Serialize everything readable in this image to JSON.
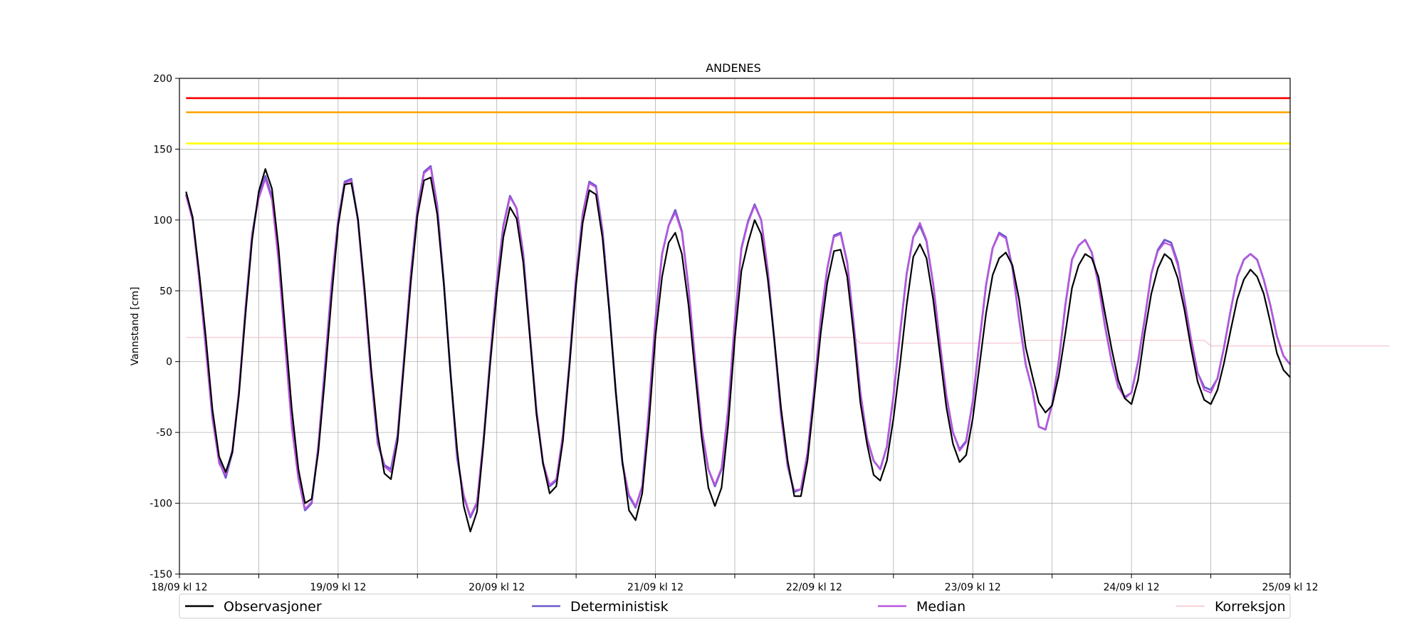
{
  "chart_data": {
    "type": "line",
    "title": "ANDENES",
    "xlabel": "",
    "ylabel": "Vannstand [cm]",
    "ylim": [
      -150,
      200
    ],
    "yticks": [
      -150,
      -100,
      -50,
      0,
      50,
      100,
      150,
      200
    ],
    "xlim": [
      "18/09 kl 12",
      "25/09 kl 12"
    ],
    "xtick_labels": [
      "18/09 kl 12",
      "19/09 kl 12",
      "20/09 kl 12",
      "21/09 kl 12",
      "22/09 kl 12",
      "23/09 kl 12",
      "24/09 kl 12",
      "25/09 kl 12"
    ],
    "x_step_hours": 1,
    "grid": true,
    "legend_position": "bottom",
    "thresholds": [
      {
        "value": 186,
        "color": "#ff0000"
      },
      {
        "value": 176,
        "color": "#ffa500"
      },
      {
        "value": 154,
        "color": "#ffff00"
      }
    ],
    "series": [
      {
        "name": "Observasjoner",
        "color": "#000000",
        "values": [
          120,
          102,
          62,
          17,
          -34,
          -67,
          -78,
          -64,
          -23,
          34,
          86,
          120,
          136,
          122,
          80,
          22,
          -34,
          -76,
          -100,
          -97,
          -64,
          -12,
          45,
          96,
          125,
          126,
          101,
          52,
          -5,
          -52,
          -79,
          -83,
          -56,
          0,
          56,
          103,
          128,
          130,
          104,
          54,
          -8,
          -62,
          -102,
          -120,
          -106,
          -58,
          -2,
          48,
          88,
          109,
          101,
          70,
          18,
          -37,
          -72,
          -93,
          -88,
          -56,
          -3,
          54,
          98,
          121,
          118,
          87,
          36,
          -21,
          -70,
          -105,
          -112,
          -93,
          -44,
          18,
          60,
          84,
          91,
          76,
          40,
          -8,
          -54,
          -89,
          -102,
          -89,
          -45,
          16,
          64,
          84,
          100,
          90,
          58,
          15,
          -33,
          -70,
          -95,
          -95,
          -70,
          -26,
          20,
          56,
          78,
          79,
          60,
          19,
          -29,
          -58,
          -80,
          -84,
          -70,
          -40,
          -2,
          40,
          74,
          83,
          73,
          44,
          6,
          -32,
          -58,
          -71,
          -66,
          -40,
          -3,
          34,
          61,
          73,
          77,
          68,
          44,
          10,
          -10,
          -29,
          -36,
          -31,
          -10,
          20,
          52,
          68,
          76,
          73,
          60,
          34,
          9,
          -13,
          -26,
          -30,
          -13,
          20,
          48,
          66,
          76,
          72,
          59,
          37,
          10,
          -14,
          -27,
          -30,
          -20,
          -1,
          22,
          44,
          58,
          65,
          60,
          48,
          28,
          6,
          -6,
          -11
        ],
        "start_index": 1
      },
      {
        "name": "Deterministisk",
        "color": "#6a5acd",
        "values": [
          118,
          100,
          58,
          10,
          -40,
          -70,
          -82,
          -64,
          -22,
          38,
          90,
          117,
          131,
          116,
          72,
          12,
          -45,
          -82,
          -105,
          -100,
          -60,
          -4,
          54,
          100,
          127,
          129,
          100,
          48,
          -10,
          -58,
          -73,
          -76,
          -52,
          4,
          62,
          108,
          134,
          138,
          110,
          56,
          -8,
          -68,
          -95,
          -110,
          -100,
          -55,
          2,
          56,
          96,
          117,
          108,
          76,
          20,
          -34,
          -72,
          -88,
          -84,
          -52,
          0,
          60,
          104,
          127,
          124,
          92,
          38,
          -22,
          -72,
          -95,
          -103,
          -88,
          -34,
          30,
          76,
          96,
          107,
          92,
          52,
          0,
          -48,
          -76,
          -88,
          -76,
          -34,
          28,
          80,
          99,
          111,
          100,
          64,
          14,
          -38,
          -74,
          -92,
          -90,
          -65,
          -20,
          30,
          66,
          89,
          91,
          70,
          26,
          -22,
          -54,
          -70,
          -76,
          -60,
          -24,
          20,
          62,
          88,
          96,
          85,
          55,
          14,
          -24,
          -50,
          -62,
          -56,
          -28,
          14,
          54,
          80,
          91,
          88,
          66,
          30,
          -2,
          -20,
          -46,
          -48,
          -30,
          0,
          40,
          72,
          82,
          86,
          77,
          55,
          25,
          0,
          -18,
          -25,
          -22,
          0,
          30,
          62,
          79,
          86,
          84,
          70,
          44,
          16,
          -8,
          -18,
          -20,
          -12,
          10,
          36,
          60,
          72,
          76,
          72,
          58,
          40,
          18,
          4,
          -2
        ]
      },
      {
        "name": "Median",
        "color": "#bb55dd",
        "values": [
          117,
          100,
          57,
          8,
          -40,
          -72,
          -80,
          -62,
          -20,
          38,
          90,
          115,
          129,
          114,
          70,
          10,
          -47,
          -83,
          -104,
          -99,
          -60,
          -4,
          54,
          100,
          126,
          128,
          99,
          47,
          -10,
          -57,
          -74,
          -78,
          -53,
          4,
          63,
          107,
          133,
          137,
          109,
          55,
          -8,
          -67,
          -94,
          -109,
          -99,
          -55,
          2,
          55,
          95,
          116,
          108,
          75,
          20,
          -34,
          -71,
          -87,
          -83,
          -52,
          0,
          60,
          103,
          126,
          123,
          91,
          37,
          -22,
          -71,
          -94,
          -102,
          -88,
          -34,
          30,
          76,
          96,
          105,
          91,
          52,
          0,
          -47,
          -76,
          -87,
          -75,
          -34,
          28,
          79,
          98,
          110,
          100,
          64,
          14,
          -38,
          -74,
          -91,
          -90,
          -64,
          -20,
          30,
          66,
          88,
          90,
          69,
          26,
          -22,
          -54,
          -70,
          -76,
          -60,
          -24,
          20,
          62,
          88,
          98,
          86,
          55,
          14,
          -24,
          -50,
          -63,
          -57,
          -28,
          14,
          54,
          80,
          90,
          87,
          66,
          30,
          -2,
          -20,
          -46,
          -48,
          -30,
          0,
          40,
          72,
          82,
          86,
          77,
          54,
          25,
          0,
          -18,
          -26,
          -22,
          0,
          30,
          62,
          78,
          84,
          82,
          68,
          43,
          16,
          -8,
          -20,
          -22,
          -12,
          10,
          36,
          60,
          72,
          76,
          72,
          58,
          40,
          18,
          4,
          -2
        ]
      },
      {
        "name": "Korreksjon",
        "color": "#f4b6c2",
        "values": [
          17,
          17,
          17,
          17,
          17,
          17,
          17,
          17,
          17,
          17,
          17,
          17,
          17,
          17,
          17,
          17,
          17,
          17,
          17,
          17,
          17,
          17,
          17,
          17,
          17,
          17,
          17,
          17,
          17,
          17,
          17,
          17,
          17,
          17,
          17,
          17,
          17,
          17,
          17,
          17,
          17,
          17,
          17,
          17,
          17,
          17,
          17,
          17,
          17,
          17,
          17,
          17,
          17,
          17,
          17,
          17,
          17,
          17,
          17,
          17,
          17,
          17,
          17,
          17,
          17,
          17,
          17,
          17,
          17,
          17,
          17,
          17,
          17,
          17,
          17,
          17,
          17,
          17,
          17,
          17,
          17,
          17,
          17,
          17,
          17,
          17,
          17,
          17,
          17,
          17,
          17,
          17,
          17,
          17,
          17,
          17,
          17,
          17,
          17,
          17,
          17,
          17,
          13,
          13,
          13,
          13,
          13,
          13,
          13,
          13,
          13,
          13,
          13,
          13,
          13,
          13,
          13,
          13,
          13,
          13,
          13,
          13,
          13,
          13,
          13,
          13,
          13,
          15,
          15,
          15,
          15,
          15,
          15,
          15,
          15,
          15,
          15,
          15,
          15,
          15,
          15,
          15,
          15,
          15,
          15,
          15,
          15,
          15,
          15,
          15,
          15,
          15,
          15,
          15,
          15,
          11,
          11,
          11,
          11,
          11,
          11,
          11,
          11,
          11,
          11,
          11,
          11,
          11,
          11,
          11,
          11,
          11,
          11,
          11,
          11,
          11,
          11,
          11,
          11,
          11,
          11,
          11,
          11
        ]
      }
    ]
  }
}
